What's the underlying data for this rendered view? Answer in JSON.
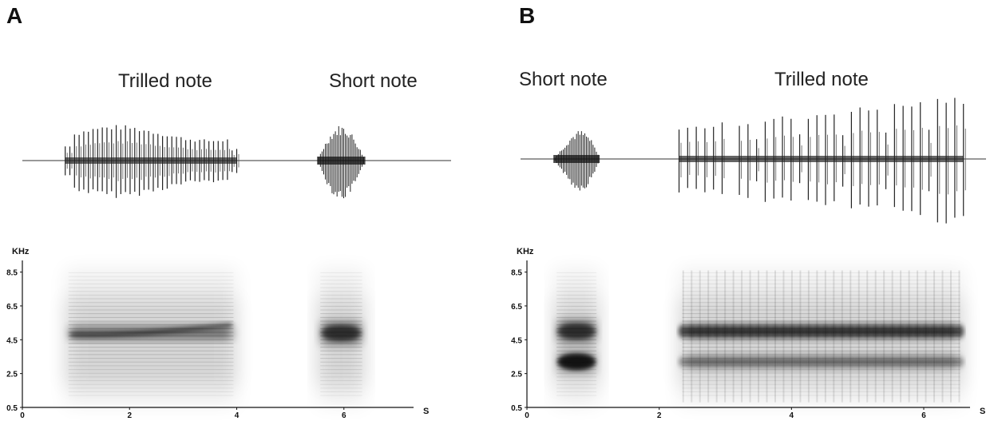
{
  "panels": [
    {
      "letter": "A",
      "notes": [
        {
          "label": "Trilled note",
          "start_s": 0.8,
          "end_s": 4.0,
          "type": "trill",
          "pulses": 38
        },
        {
          "label": "Short note",
          "start_s": 5.5,
          "end_s": 6.4,
          "type": "short"
        }
      ],
      "spectrogram": {
        "y_unit": "KHz",
        "x_unit": "S",
        "x_ticks": [
          "0",
          "2",
          "4",
          "6"
        ],
        "y_ticks": [
          "8.5",
          "6.5",
          "4.5",
          "2.5",
          "0.5"
        ],
        "x_range_s": [
          0,
          7.3
        ],
        "y_range_khz": [
          0.5,
          9.0
        ],
        "bands_khz": [
          4.9
        ]
      }
    },
    {
      "letter": "B",
      "notes": [
        {
          "label": "Short note",
          "start_s": 0.4,
          "end_s": 1.1,
          "type": "short"
        },
        {
          "label": "Trilled note",
          "start_s": 2.3,
          "end_s": 6.6,
          "type": "trill",
          "pulses": 34
        }
      ],
      "spectrogram": {
        "y_unit": "KHz",
        "x_unit": "S",
        "x_ticks": [
          "0",
          "2",
          "4",
          "6"
        ],
        "y_ticks": [
          "8.5",
          "6.5",
          "4.5",
          "2.5",
          "0.5"
        ],
        "x_range_s": [
          0,
          6.7
        ],
        "y_range_khz": [
          0.5,
          9.0
        ],
        "bands_khz": [
          5.0,
          3.2
        ]
      }
    }
  ]
}
